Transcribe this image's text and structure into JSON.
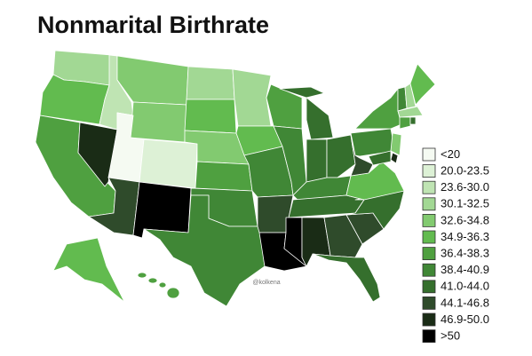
{
  "title": "Nonmarital Birthrate",
  "watermark": "@kolkena",
  "legend": [
    {
      "label": "<20",
      "color": "#f5faf2"
    },
    {
      "label": "20.0-23.5",
      "color": "#ddf1d6"
    },
    {
      "label": "23.6-30.0",
      "color": "#bfe4b3"
    },
    {
      "label": "30.1-32.5",
      "color": "#a2d894"
    },
    {
      "label": "32.6-34.8",
      "color": "#82ca70"
    },
    {
      "label": "34.9-36.3",
      "color": "#62bb4f"
    },
    {
      "label": "36.4-38.3",
      "color": "#4fa040"
    },
    {
      "label": "38.4-40.9",
      "color": "#408736"
    },
    {
      "label": "41.0-44.0",
      "color": "#356f2d"
    },
    {
      "label": "44.1-46.8",
      "color": "#2f4b2b"
    },
    {
      "label": "46.9-50.0",
      "color": "#1a2c16"
    },
    {
      "label": ">50",
      "color": "#000000"
    }
  ]
}
